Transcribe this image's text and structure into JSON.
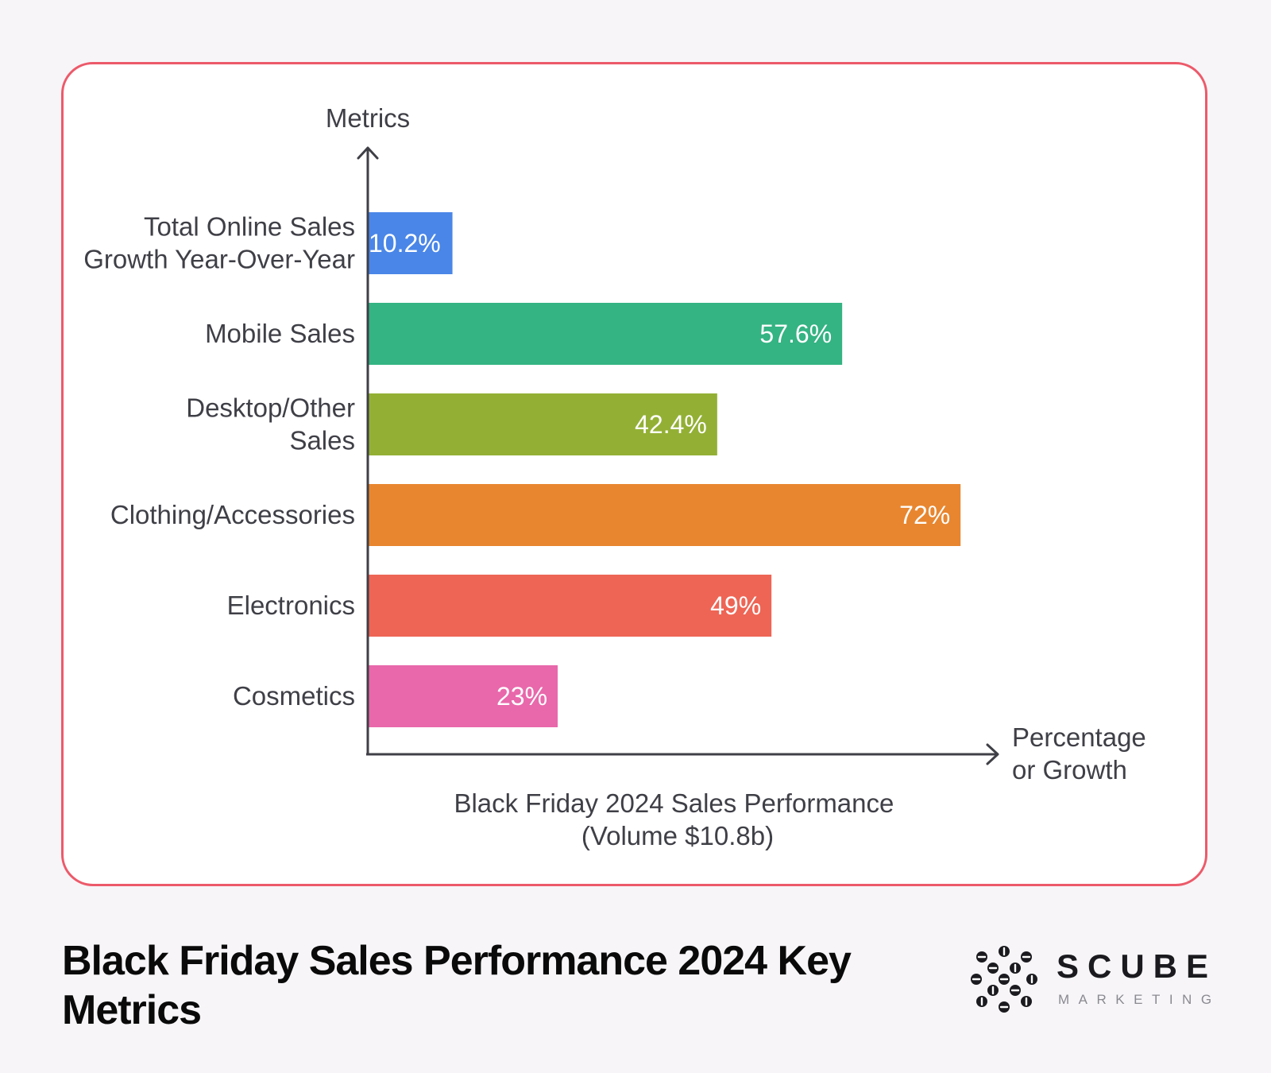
{
  "chart_data": {
    "type": "bar",
    "orientation": "horizontal",
    "title": "",
    "ylabel": "Metrics",
    "xlabel": "Percentage or Growth",
    "xlabel_lines": [
      "Percentage",
      "or Growth"
    ],
    "caption_lines": [
      "Black Friday 2024 Sales Performance",
      "(Volume $10.8b)"
    ],
    "categories": [
      "Total Online Sales Growth Year-Over-Year",
      "Mobile Sales",
      "Desktop/Other Sales",
      "Clothing/Accessories",
      "Electronics",
      "Cosmetics"
    ],
    "category_lines": [
      [
        "Total Online Sales",
        "Growth Year-Over-Year"
      ],
      [
        "Mobile Sales"
      ],
      [
        "Desktop/Other",
        "Sales"
      ],
      [
        "Clothing/Accessories"
      ],
      [
        "Electronics"
      ],
      [
        "Cosmetics"
      ]
    ],
    "values": [
      10.2,
      57.6,
      42.4,
      72,
      49,
      23
    ],
    "value_labels": [
      "10.2%",
      "57.6%",
      "42.4%",
      "72%",
      "49%",
      "23%"
    ],
    "colors": [
      "#4a86e8",
      "#34b383",
      "#93b035",
      "#e8862f",
      "#ee6555",
      "#e868ab"
    ],
    "xlim": [
      0,
      100
    ],
    "grid": false,
    "legend": "none"
  },
  "footer": {
    "title": "Black Friday Sales Performance 2024 Key Metrics"
  },
  "brand": {
    "name": "SCUBE",
    "subtitle": "MARKETING",
    "logo_icon": "scube-logo-icon"
  },
  "colors": {
    "card_border": "#ec5a6a",
    "background": "#f7f5f8",
    "axis": "#3f3f47"
  }
}
